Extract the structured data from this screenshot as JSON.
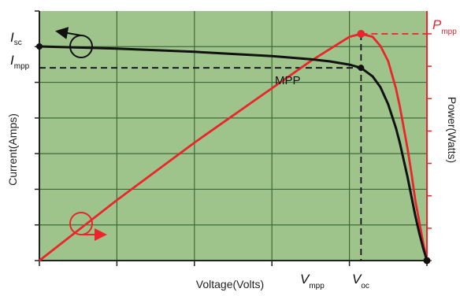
{
  "chart_data": {
    "type": "line",
    "xlabel": "Voltage(Volts)",
    "ylabel_left": "Current(Amps)",
    "ylabel_right": "Power(Watts)",
    "xlim": [
      0,
      1
    ],
    "ylim_left": [
      0,
      1
    ],
    "ylim_right": [
      0,
      1
    ],
    "grid": true,
    "colors": {
      "background": "#9ec48c",
      "grid": "#3f6a38",
      "current": "#111111",
      "power": "#e8262c",
      "axis_left": "#222222",
      "axis_right": "#e8262c"
    },
    "series": [
      {
        "axis": "left",
        "x": [
          0,
          0.2,
          0.4,
          0.6,
          0.7,
          0.75,
          0.8,
          0.83,
          0.86,
          0.88,
          0.9,
          0.92,
          0.93,
          0.94,
          0.95,
          0.96,
          0.97,
          0.98,
          0.99,
          1.0
        ],
        "y": [
          1.0,
          0.99,
          0.975,
          0.955,
          0.94,
          0.93,
          0.915,
          0.9,
          0.86,
          0.81,
          0.73,
          0.62,
          0.55,
          0.47,
          0.39,
          0.3,
          0.21,
          0.13,
          0.06,
          0
        ]
      },
      {
        "axis": "right",
        "x": [
          0,
          0.2,
          0.4,
          0.6,
          0.7,
          0.75,
          0.8,
          0.83,
          0.86,
          0.88,
          0.9,
          0.92,
          0.93,
          0.94,
          0.95,
          0.96,
          0.97,
          0.98,
          0.99,
          1.0
        ],
        "y": [
          0,
          0.2,
          0.39,
          0.57,
          0.66,
          0.7,
          0.74,
          0.75,
          0.74,
          0.71,
          0.66,
          0.57,
          0.51,
          0.44,
          0.37,
          0.29,
          0.2,
          0.13,
          0.06,
          0
        ]
      }
    ],
    "points": {
      "isc": {
        "x": 0,
        "y": 1.0
      },
      "mpp": {
        "x": 0.83,
        "y": 0.9
      },
      "pmpp": {
        "x": 0.83,
        "y": 0.75
      },
      "voc": {
        "x": 1.0,
        "y": 0
      }
    },
    "labels": {
      "isc": {
        "main": "I",
        "sub": "sc"
      },
      "impp": {
        "main": "I",
        "sub": "mpp"
      },
      "pmpp": {
        "main": "P",
        "sub": "mpp"
      },
      "mpp": "MPP",
      "vmpp": {
        "main": "V",
        "sub": "mpp"
      },
      "voc": {
        "main": "V",
        "sub": "oc"
      }
    }
  }
}
